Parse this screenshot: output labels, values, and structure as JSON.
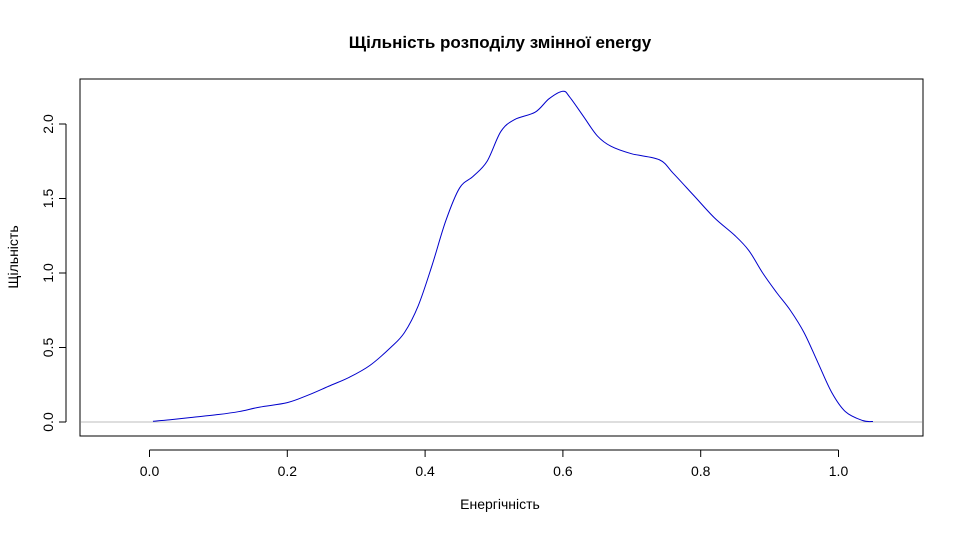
{
  "chart_data": {
    "type": "line",
    "title": "Щільність розподілу змінної energy",
    "xlabel": "Енергічність",
    "ylabel": "Щільність",
    "xlim": [
      -0.1,
      1.12
    ],
    "ylim": [
      -0.1,
      2.3
    ],
    "xticks": [
      0.0,
      0.2,
      0.4,
      0.6,
      0.8,
      1.0
    ],
    "xtick_labels": [
      "0.0",
      "0.2",
      "0.4",
      "0.6",
      "0.8",
      "1.0"
    ],
    "yticks": [
      0.0,
      0.5,
      1.0,
      1.5,
      2.0
    ],
    "ytick_labels": [
      "0.0",
      "0.5",
      "1.0",
      "1.5",
      "2.0"
    ],
    "grid": false,
    "reference_line_y": 0,
    "colors": {
      "line": "#0000cc",
      "reference": "#bebebe"
    },
    "series": [
      {
        "x": [
          0.005,
          0.03,
          0.06,
          0.1,
          0.13,
          0.16,
          0.2,
          0.23,
          0.26,
          0.29,
          0.32,
          0.35,
          0.37,
          0.39,
          0.41,
          0.43,
          0.45,
          0.47,
          0.49,
          0.51,
          0.53,
          0.56,
          0.58,
          0.6,
          0.61,
          0.63,
          0.65,
          0.67,
          0.7,
          0.74,
          0.76,
          0.79,
          0.82,
          0.85,
          0.87,
          0.89,
          0.91,
          0.93,
          0.95,
          0.97,
          0.99,
          1.01,
          1.035,
          1.05
        ],
        "y": [
          0.005,
          0.015,
          0.03,
          0.05,
          0.07,
          0.1,
          0.13,
          0.18,
          0.24,
          0.3,
          0.38,
          0.5,
          0.6,
          0.78,
          1.05,
          1.35,
          1.57,
          1.65,
          1.75,
          1.95,
          2.03,
          2.08,
          2.17,
          2.22,
          2.18,
          2.05,
          1.92,
          1.85,
          1.8,
          1.76,
          1.67,
          1.52,
          1.37,
          1.25,
          1.15,
          1.0,
          0.87,
          0.75,
          0.6,
          0.4,
          0.2,
          0.07,
          0.01,
          0.003
        ]
      }
    ]
  }
}
